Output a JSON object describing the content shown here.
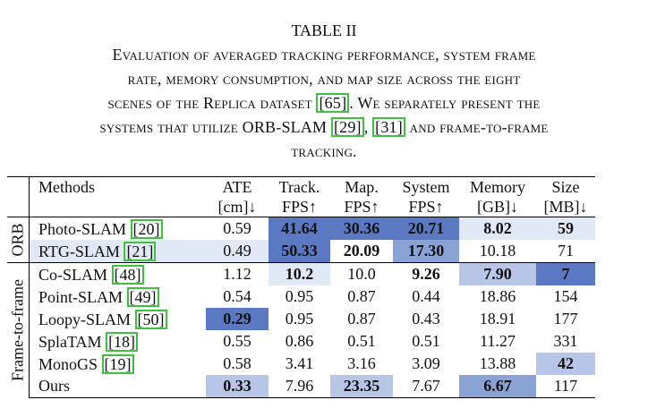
{
  "table_number": "TABLE II",
  "caption_lines": [
    [
      "Evaluation of averaged tracking performance, system frame"
    ],
    [
      "rate, memory consumption, and map size across the eight"
    ],
    [
      "scenes of the Replica dataset ",
      "[65]",
      ". We separately present the"
    ],
    [
      "systems that utilize ORB-SLAM ",
      "[29]",
      ", ",
      "[31]",
      " and frame-to-frame"
    ],
    [
      "tracking."
    ]
  ],
  "header": {
    "row1": [
      "Methods",
      "ATE",
      "Track.",
      "Map.",
      "System",
      "Memory",
      "Size"
    ],
    "row2": [
      "",
      "[cm]↓",
      "FPS↑",
      "FPS↑",
      "FPS↑",
      "[GB]↓",
      "[MB]↓"
    ]
  },
  "groups": [
    {
      "label": "ORB",
      "rows": [
        {
          "method": "Photo-SLAM ",
          "ref": "[20]",
          "values": [
            "0.59",
            "41.64",
            "30.36",
            "20.71",
            "8.02",
            "59"
          ]
        },
        {
          "method": "RTG-SLAM ",
          "ref": "[21]",
          "values": [
            "0.49",
            "50.33",
            "20.09",
            "17.30",
            "10.18",
            "71"
          ]
        }
      ]
    },
    {
      "label": "Frame-to-frame",
      "rows": [
        {
          "method": "Co-SLAM ",
          "ref": "[48]",
          "values": [
            "1.12",
            "10.2",
            "10.0",
            "9.26",
            "7.90",
            "7"
          ]
        },
        {
          "method": "Point-SLAM ",
          "ref": "[49]",
          "values": [
            "0.54",
            "0.95",
            "0.87",
            "0.44",
            "18.86",
            "154"
          ]
        },
        {
          "method": "Loopy-SLAM ",
          "ref": "[50]",
          "values": [
            "0.29",
            "0.95",
            "0.87",
            "0.43",
            "18.91",
            "177"
          ]
        },
        {
          "method": "SplaTAM ",
          "ref": "[18]",
          "values": [
            "0.55",
            "0.86",
            "0.51",
            "0.51",
            "11.27",
            "331"
          ]
        },
        {
          "method": "MonoGS ",
          "ref": "[19]",
          "values": [
            "0.58",
            "3.41",
            "3.16",
            "3.09",
            "13.88",
            "42"
          ]
        },
        {
          "method": "Ours",
          "ref": "",
          "values": [
            "0.33",
            "7.96",
            "23.35",
            "7.67",
            "6.67",
            "117"
          ]
        }
      ]
    }
  ],
  "colors": {
    "shade_dark": "#5b78c2",
    "shade_mid": "#8ba2d5",
    "shade_light": "#b7c6e6",
    "shade_faint": "#e1e9f6",
    "ref_box": "#3ec13e"
  }
}
